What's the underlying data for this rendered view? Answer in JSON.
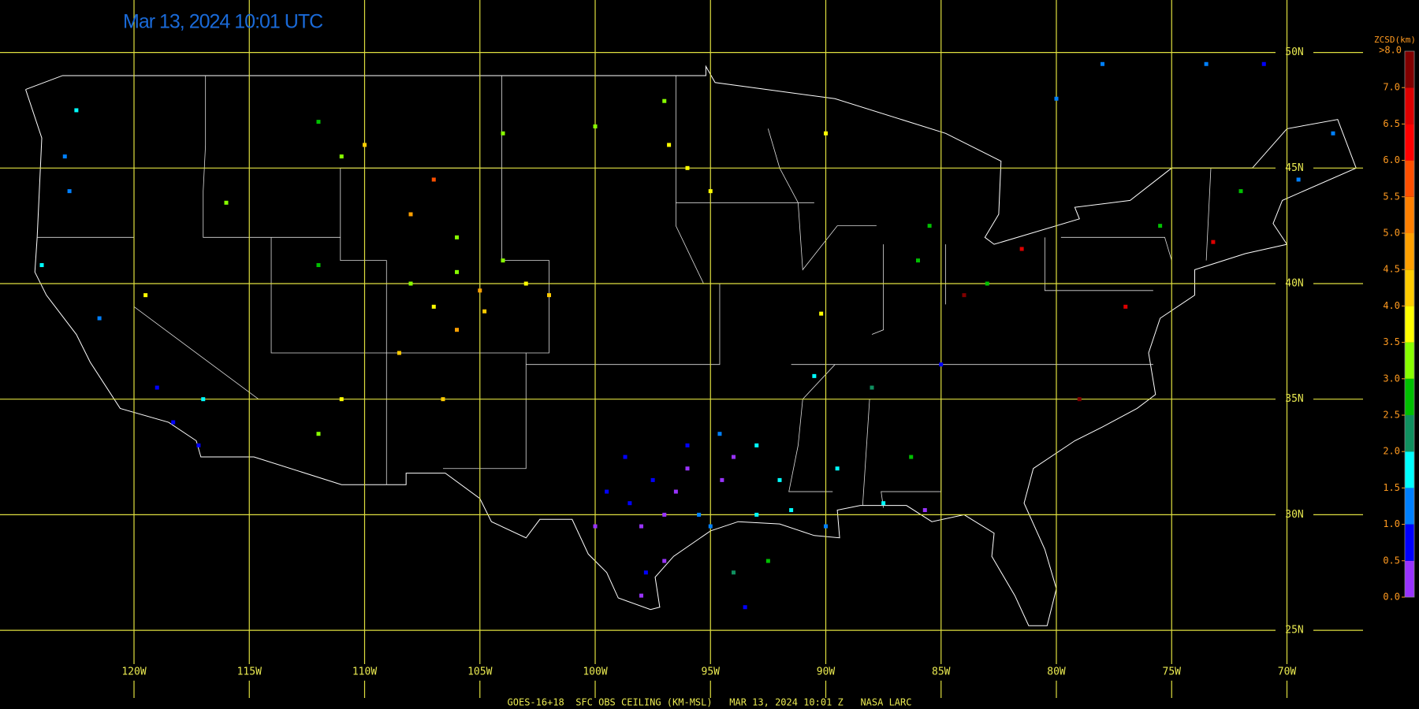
{
  "title": "Mar 13, 2024 10:01 UTC",
  "footer": "GOES-16+18  SFC OBS CEILING (KM-MSL)   MAR 13, 2024 10:01 Z   NASA LARC",
  "latitudes": [
    {
      "value": 50,
      "label": "50N"
    },
    {
      "value": 45,
      "label": "45N"
    },
    {
      "value": 40,
      "label": "40N"
    },
    {
      "value": 35,
      "label": "35N"
    },
    {
      "value": 30,
      "label": "30N"
    },
    {
      "value": 25,
      "label": "25N"
    }
  ],
  "longitudes": [
    {
      "value": -120,
      "label": "120W"
    },
    {
      "value": -115,
      "label": "115W"
    },
    {
      "value": -110,
      "label": "110W"
    },
    {
      "value": -105,
      "label": "105W"
    },
    {
      "value": -100,
      "label": "100W"
    },
    {
      "value": -95,
      "label": "95W"
    },
    {
      "value": -90,
      "label": "90W"
    },
    {
      "value": -85,
      "label": "85W"
    },
    {
      "value": -80,
      "label": "80W"
    },
    {
      "value": -75,
      "label": "75W"
    },
    {
      "value": -70,
      "label": "70W"
    }
  ],
  "legend": {
    "title": "ZCSD(km)",
    "top_label": ">8.0",
    "ticks": [
      {
        "value": 0,
        "label": "0.0"
      },
      {
        "value": 0.5,
        "label": "0.5"
      },
      {
        "value": 1,
        "label": "1.0"
      },
      {
        "value": 1.5,
        "label": "1.5"
      },
      {
        "value": 2,
        "label": "2.0"
      },
      {
        "value": 2.5,
        "label": "2.5"
      },
      {
        "value": 3,
        "label": "3.0"
      },
      {
        "value": 3.5,
        "label": "3.5"
      },
      {
        "value": 4,
        "label": "4.0"
      },
      {
        "value": 4.5,
        "label": "4.5"
      },
      {
        "value": 5,
        "label": "5.0"
      },
      {
        "value": 5.5,
        "label": "5.5"
      },
      {
        "value": 6,
        "label": "6.0"
      },
      {
        "value": 6.5,
        "label": "6.5"
      },
      {
        "value": 7,
        "label": "7.0"
      }
    ],
    "colors": [
      "#9933ff",
      "#0000ff",
      "#0080ff",
      "#00ffff",
      "#109060",
      "#00c000",
      "#88ff00",
      "#ffff00",
      "#ffcc00",
      "#ffa000",
      "#ff8000",
      "#ff5000",
      "#ff0000",
      "#dd0000",
      "#800000"
    ]
  },
  "observations": [
    [
      -97,
      30,
      0.3
    ],
    [
      -98,
      29.5,
      0.4
    ],
    [
      -96.5,
      31,
      0.3
    ],
    [
      -97.5,
      31.5,
      0.7
    ],
    [
      -98.5,
      30.5,
      0.8
    ],
    [
      -96,
      32,
      0.4
    ],
    [
      -95.5,
      30,
      1.2
    ],
    [
      -97,
      28,
      0.3
    ],
    [
      -97.8,
      27.5,
      0.6
    ],
    [
      -98,
      26.5,
      0.3
    ],
    [
      -94.5,
      31.5,
      0.4
    ],
    [
      -94,
      32.5,
      0.3
    ],
    [
      -95,
      29.5,
      1.3
    ],
    [
      -93,
      30,
      1.8
    ],
    [
      -91.5,
      30.2,
      1.7
    ],
    [
      -92,
      31.5,
      1.8
    ],
    [
      -99.5,
      31,
      0.8
    ],
    [
      -100,
      29.5,
      0.4
    ],
    [
      -98.7,
      32.5,
      0.8
    ],
    [
      -96,
      33,
      0.7
    ],
    [
      -94.6,
      33.5,
      1.2
    ],
    [
      -93,
      33,
      1.6
    ],
    [
      -105,
      39.7,
      4.5
    ],
    [
      -104.8,
      38.8,
      4.2
    ],
    [
      -106,
      40.5,
      3.2
    ],
    [
      -107,
      39,
      3.8
    ],
    [
      -108,
      40,
      3.0
    ],
    [
      -103,
      40,
      3.7
    ],
    [
      -102,
      39.5,
      4.3
    ],
    [
      -104,
      41,
      3.3
    ],
    [
      -106,
      38,
      4.6
    ],
    [
      -108.5,
      37,
      4.1
    ],
    [
      -107,
      44.5,
      5.5
    ],
    [
      -108,
      43,
      4.5
    ],
    [
      -106,
      42,
      3.0
    ],
    [
      -110,
      46,
      4.2
    ],
    [
      -112,
      47,
      2.8
    ],
    [
      -111,
      45.5,
      3.0
    ],
    [
      -104,
      46.5,
      3.2
    ],
    [
      -100,
      46.8,
      3.4
    ],
    [
      -97,
      47.9,
      3.0
    ],
    [
      -96.8,
      46,
      3.7
    ],
    [
      -96,
      45,
      3.9
    ],
    [
      -95,
      44,
      3.6
    ],
    [
      -90,
      46.5,
      3.8
    ],
    [
      -122.5,
      47.5,
      1.6
    ],
    [
      -123,
      45.5,
      1.4
    ],
    [
      -122.8,
      44,
      1.2
    ],
    [
      -124,
      40.8,
      1.9
    ],
    [
      -121.5,
      38.5,
      1.2
    ],
    [
      -118.3,
      34,
      0.6
    ],
    [
      -117.2,
      33,
      0.7
    ],
    [
      -119,
      35.5,
      0.9
    ],
    [
      -117,
      35,
      1.6
    ],
    [
      -119.5,
      39.5,
      3.5
    ],
    [
      -116,
      43.5,
      3.0
    ],
    [
      -112,
      40.8,
      2.8
    ],
    [
      -112,
      33.5,
      3.0
    ],
    [
      -111,
      35,
      3.8
    ],
    [
      -106.6,
      35,
      4.2
    ],
    [
      -85.5,
      42.5,
      2.8
    ],
    [
      -86,
      41,
      2.6
    ],
    [
      -83,
      40,
      2.8
    ],
    [
      -81.5,
      41.5,
      6.5
    ],
    [
      -77,
      39,
      6.5
    ],
    [
      -73.2,
      41.8,
      6.5
    ],
    [
      -75.5,
      42.5,
      2.8
    ],
    [
      -72,
      44,
      2.6
    ],
    [
      -68,
      46.5,
      1.0
    ],
    [
      -69.5,
      44.5,
      1.1
    ],
    [
      -79,
      35,
      7.2
    ],
    [
      -84,
      39.5,
      7.0
    ],
    [
      -85,
      36.5,
      0.6
    ],
    [
      -90.2,
      38.7,
      3.5
    ],
    [
      -90.5,
      36,
      1.8
    ],
    [
      -88,
      35.5,
      2.0
    ],
    [
      -89.5,
      32,
      1.9
    ],
    [
      -86.3,
      32.5,
      2.5
    ],
    [
      -85.7,
      30.2,
      0.4
    ],
    [
      -87.5,
      30.5,
      1.5
    ],
    [
      -90,
      29.5,
      1.0
    ],
    [
      -92.5,
      28,
      2.5
    ],
    [
      -94,
      27.5,
      2.3
    ],
    [
      -93.5,
      26,
      0.8
    ],
    [
      -80,
      48,
      1.4
    ],
    [
      -78,
      49.5,
      1.2
    ],
    [
      -73.5,
      49.5,
      1.1
    ],
    [
      -71,
      49.5,
      0.9
    ]
  ]
}
